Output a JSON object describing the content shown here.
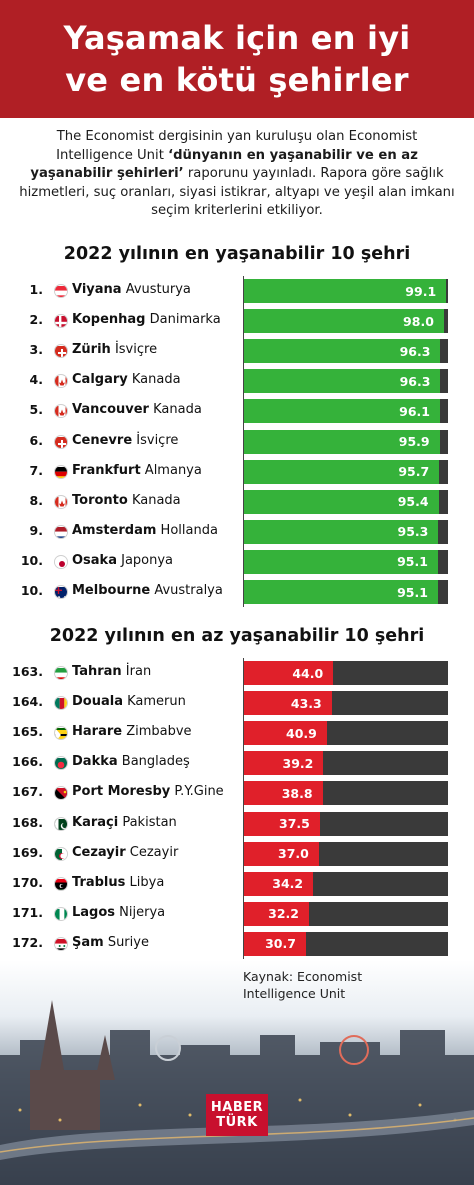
{
  "header": {
    "title_line1": "Yaşamak için en iyi",
    "title_line2": "ve en kötü şehirler"
  },
  "intro": {
    "part1": "The Economist dergisinin yan kuruluşu olan Economist Intelligence Unit ",
    "bold": "‘dünyanın en yaşanabilir ve en az yaşanabilir şehirleri’",
    "part2": " raporunu yayınladı. Rapora göre sağlık hizmetleri, suç oranları, siyasi istikrar, altyapı ve yeşil alan imkanı seçim kriterlerini etkiliyor."
  },
  "colors": {
    "header_bg": "#b01f25",
    "best_bar": "#35b23a",
    "worst_bar": "#e0202a",
    "track": "#3a3a3a"
  },
  "chart_data": [
    {
      "type": "bar",
      "title": "2022 yılının en yaşanabilir 10 şehri",
      "xlim": [
        0,
        100
      ],
      "categories": [
        "Viyana Avusturya",
        "Kopenhag Danimarka",
        "Zürih İsviçre",
        "Calgary Kanada",
        "Vancouver Kanada",
        "Cenevre İsviçre",
        "Frankfurt Almanya",
        "Toronto Kanada",
        "Amsterdam Hollanda",
        "Osaka Japonya",
        "Melbourne Avustralya"
      ],
      "values": [
        99.1,
        98.0,
        96.3,
        96.3,
        96.1,
        95.9,
        95.7,
        95.4,
        95.3,
        95.1,
        95.1
      ],
      "rows": [
        {
          "rank": "1.",
          "city": "Viyana",
          "country": "Avusturya",
          "value": "99.1",
          "flag": "austria-flag"
        },
        {
          "rank": "2.",
          "city": "Kopenhag",
          "country": "Danimarka",
          "value": "98.0",
          "flag": "denmark-flag"
        },
        {
          "rank": "3.",
          "city": "Zürih",
          "country": "İsviçre",
          "value": "96.3",
          "flag": "switzerland-flag"
        },
        {
          "rank": "4.",
          "city": "Calgary",
          "country": "Kanada",
          "value": "96.3",
          "flag": "canada-flag"
        },
        {
          "rank": "5.",
          "city": "Vancouver",
          "country": "Kanada",
          "value": "96.1",
          "flag": "canada-flag"
        },
        {
          "rank": "6.",
          "city": "Cenevre",
          "country": "İsviçre",
          "value": "95.9",
          "flag": "switzerland-flag"
        },
        {
          "rank": "7.",
          "city": "Frankfurt",
          "country": "Almanya",
          "value": "95.7",
          "flag": "germany-flag"
        },
        {
          "rank": "8.",
          "city": "Toronto",
          "country": "Kanada",
          "value": "95.4",
          "flag": "canada-flag"
        },
        {
          "rank": "9.",
          "city": "Amsterdam",
          "country": "Hollanda",
          "value": "95.3",
          "flag": "netherlands-flag"
        },
        {
          "rank": "10.",
          "city": "Osaka",
          "country": "Japonya",
          "value": "95.1",
          "flag": "japan-flag"
        },
        {
          "rank": "10.",
          "city": "Melbourne",
          "country": "Avustralya",
          "value": "95.1",
          "flag": "australia-flag"
        }
      ]
    },
    {
      "type": "bar",
      "title": "2022 yılının en az yaşanabilir 10 şehri",
      "xlim": [
        0,
        100
      ],
      "categories": [
        "Tahran İran",
        "Douala Kamerun",
        "Harare Zimbabve",
        "Dakka Bangladeş",
        "Port Moresby P.Y.Gine",
        "Karaçi Pakistan",
        "Cezayir Cezayir",
        "Trablus Libya",
        "Lagos Nijerya",
        "Şam Suriye"
      ],
      "values": [
        44.0,
        43.3,
        40.9,
        39.2,
        38.8,
        37.5,
        37.0,
        34.2,
        32.2,
        30.7
      ],
      "rows": [
        {
          "rank": "163.",
          "city": "Tahran",
          "country": "İran",
          "value": "44.0",
          "flag": "iran-flag"
        },
        {
          "rank": "164.",
          "city": "Douala",
          "country": "Kamerun",
          "value": "43.3",
          "flag": "cameroon-flag"
        },
        {
          "rank": "165.",
          "city": "Harare",
          "country": "Zimbabve",
          "value": "40.9",
          "flag": "zimbabwe-flag"
        },
        {
          "rank": "166.",
          "city": "Dakka",
          "country": "Bangladeş",
          "value": "39.2",
          "flag": "bangladesh-flag"
        },
        {
          "rank": "167.",
          "city": "Port Moresby",
          "country": "P.Y.Gine",
          "value": "38.8",
          "flag": "papua-new-guinea-flag"
        },
        {
          "rank": "168.",
          "city": "Karaçi",
          "country": "Pakistan",
          "value": "37.5",
          "flag": "pakistan-flag"
        },
        {
          "rank": "169.",
          "city": "Cezayir",
          "country": "Cezayir",
          "value": "37.0",
          "flag": "algeria-flag"
        },
        {
          "rank": "170.",
          "city": "Trablus",
          "country": "Libya",
          "value": "34.2",
          "flag": "libya-flag"
        },
        {
          "rank": "171.",
          "city": "Lagos",
          "country": "Nijerya",
          "value": "32.2",
          "flag": "nigeria-flag"
        },
        {
          "rank": "172.",
          "city": "Şam",
          "country": "Suriye",
          "value": "30.7",
          "flag": "syria-flag"
        }
      ]
    }
  ],
  "source": {
    "line1": "Kaynak: Economist",
    "line2": "Intelligence Unit"
  },
  "logo": {
    "line1": "HABER",
    "line2": "TÜRK"
  }
}
